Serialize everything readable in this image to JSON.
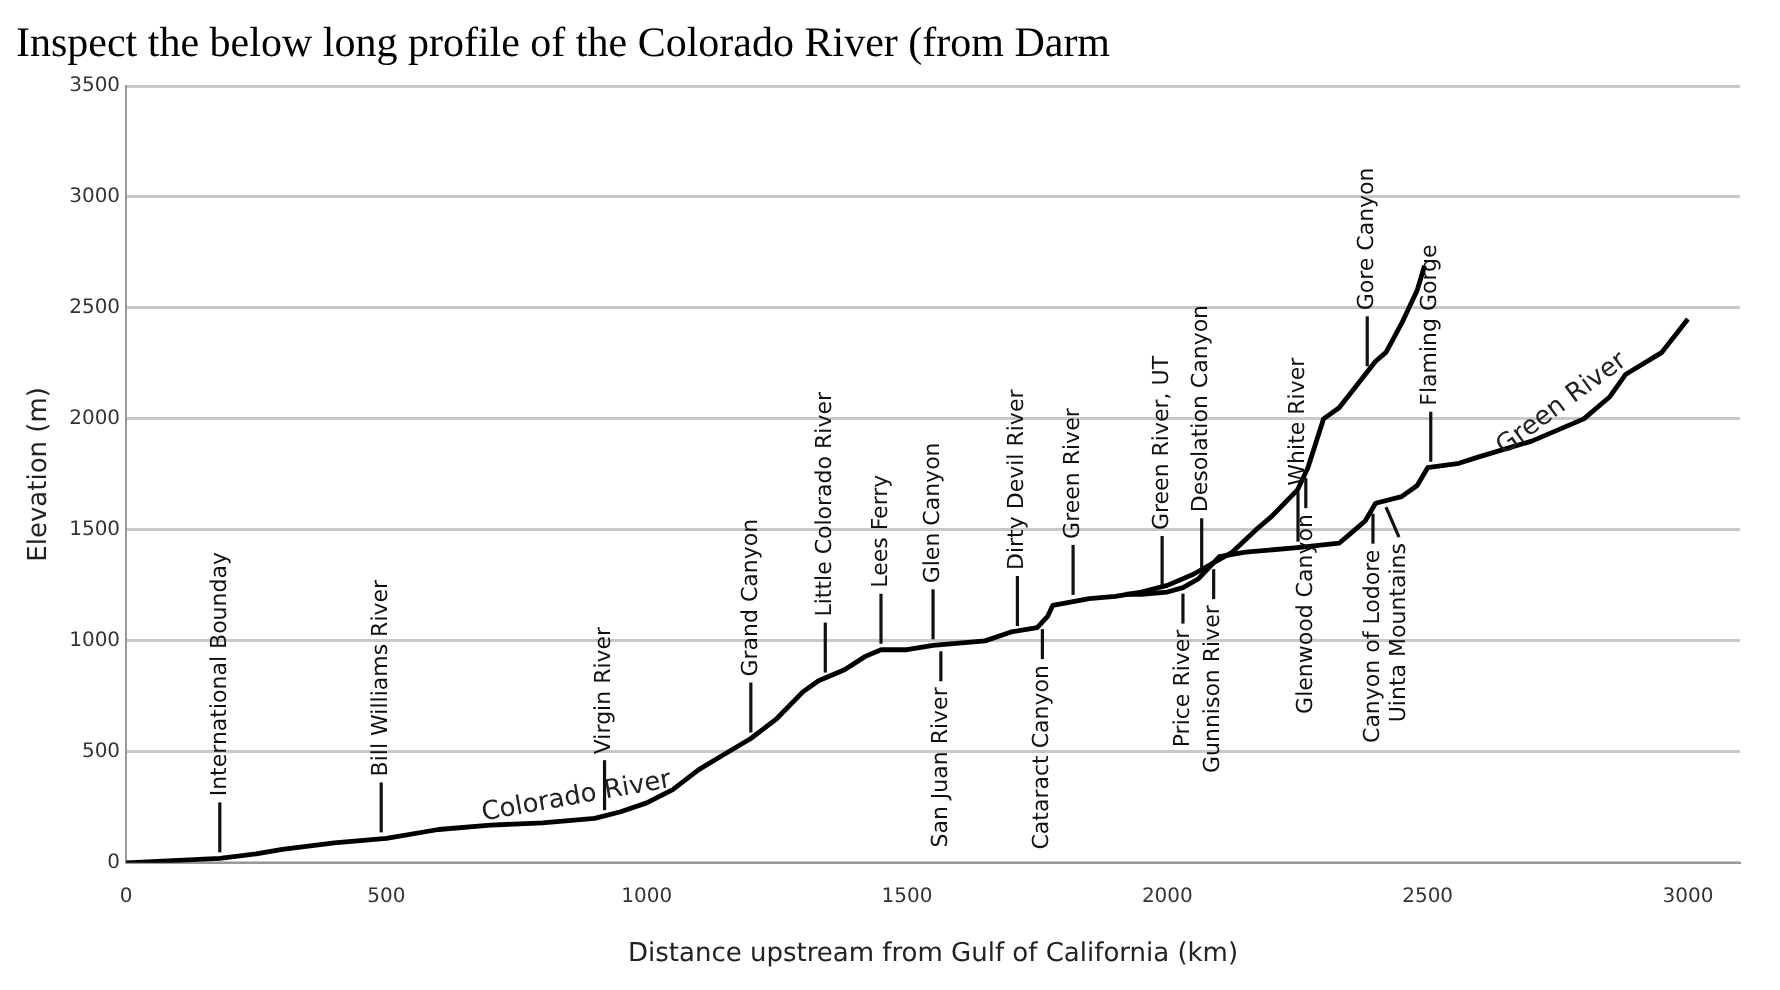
{
  "chart_data": {
    "type": "line",
    "title": "Inspect the below long profile of the Colorado River (from Darm",
    "xlabel": "Distance upstream from Gulf of California (km)",
    "ylabel": "Elevation (m)",
    "xlim": [
      0,
      3100
    ],
    "xticks": [
      0,
      500,
      1000,
      1500,
      2000,
      2500,
      3000
    ],
    "ylim": [
      0,
      3500
    ],
    "yticks": [
      0,
      500,
      1000,
      1500,
      2000,
      2500,
      3000,
      3500
    ],
    "grid": "y",
    "legend": false,
    "series": [
      {
        "name": "Colorado River",
        "color": "#000000",
        "x": [
          0,
          180,
          250,
          300,
          400,
          500,
          600,
          700,
          800,
          900,
          950,
          1000,
          1050,
          1100,
          1150,
          1200,
          1250,
          1300,
          1330,
          1380,
          1420,
          1450,
          1500,
          1550,
          1600,
          1650,
          1700,
          1750,
          1770,
          1780,
          1850,
          1900,
          1950,
          2000,
          2050,
          2125,
          2170,
          2200,
          2250,
          2270,
          2300,
          2330,
          2370,
          2400,
          2420,
          2450,
          2480,
          2494
        ],
        "values": [
          0,
          20,
          40,
          60,
          90,
          110,
          150,
          170,
          180,
          200,
          230,
          270,
          330,
          420,
          490,
          560,
          650,
          770,
          820,
          870,
          930,
          960,
          960,
          980,
          990,
          1000,
          1040,
          1060,
          1110,
          1160,
          1190,
          1200,
          1220,
          1250,
          1300,
          1400,
          1500,
          1560,
          1680,
          1780,
          2000,
          2050,
          2170,
          2260,
          2300,
          2430,
          2580,
          2690
        ]
      },
      {
        "name": "Green River",
        "color": "#000000",
        "x": [
          1920,
          1950,
          2000,
          2030,
          2060,
          2080,
          2100,
          2150,
          2250,
          2330,
          2350,
          2380,
          2400,
          2450,
          2480,
          2500,
          2560,
          2600,
          2700,
          2800,
          2850,
          2880,
          2950,
          3000
        ],
        "values": [
          1210,
          1210,
          1220,
          1240,
          1280,
          1330,
          1380,
          1400,
          1420,
          1440,
          1480,
          1540,
          1620,
          1650,
          1700,
          1780,
          1800,
          1830,
          1900,
          2000,
          2100,
          2200,
          2300,
          2450
        ]
      }
    ],
    "annotations": [
      {
        "text": "International Bounday",
        "x": 180,
        "y": 20
      },
      {
        "text": "Bill Williams River",
        "x": 490,
        "y": 110
      },
      {
        "text": "Virgin River",
        "x": 919,
        "y": 210
      },
      {
        "text": "Grand Canyon",
        "x": 1200,
        "y": 560
      },
      {
        "text": "Little Colorado River",
        "x": 1343,
        "y": 830
      },
      {
        "text": "Lees Ferry",
        "x": 1450,
        "y": 960
      },
      {
        "text": "Glen Canyon",
        "x": 1550,
        "y": 980
      },
      {
        "text": "San Juan River",
        "x": 1565,
        "y": 980
      },
      {
        "text": "Dirty Devil River",
        "x": 1712,
        "y": 1040
      },
      {
        "text": "Cataract Canyon",
        "x": 1760,
        "y": 1080
      },
      {
        "text": "Green River",
        "x": 1819,
        "y": 1180
      },
      {
        "text": "Green River, UT",
        "x": 1990,
        "y": 1220
      },
      {
        "text": "Price River",
        "x": 2030,
        "y": 1240
      },
      {
        "text": "Desolation Canyon",
        "x": 2066,
        "y": 1300
      },
      {
        "text": "Gunnison River",
        "x": 2089,
        "y": 1350
      },
      {
        "text": "White River",
        "x": 2251,
        "y": 1420
      },
      {
        "text": "Glenwood Canyon",
        "x": 2266,
        "y": 1760
      },
      {
        "text": "Gore Canyon",
        "x": 2384,
        "y": 2210
      },
      {
        "text": "Uinta Mountains",
        "x": 2420,
        "y": 1630
      },
      {
        "text": "Canyon of Lodore",
        "x": 2395,
        "y": 1600
      },
      {
        "text": "Flaming Gorge",
        "x": 2506,
        "y": 1780
      }
    ]
  }
}
